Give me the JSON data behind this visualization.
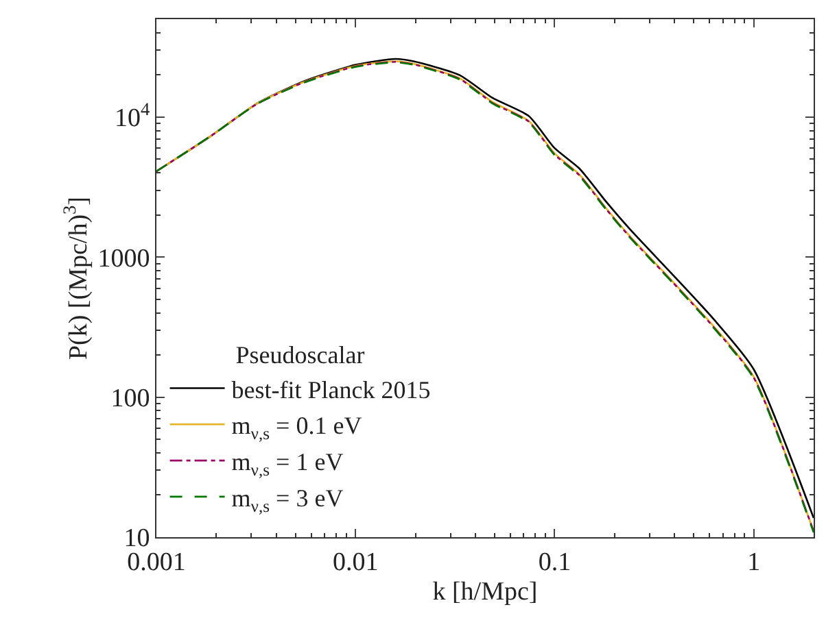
{
  "chart_data": {
    "type": "line",
    "xlabel": "k [h/Mpc]",
    "ylabel": "P(k) [(Mpc/h)$^{3}$]",
    "legend_title": "Pseudoscalar",
    "log": "xy",
    "legend": "bottom left",
    "x": [
      0.001,
      0.00187,
      0.0032,
      0.0055,
      0.01,
      0.0159,
      0.0196,
      0.0332,
      0.0488,
      0.074,
      0.1,
      0.133,
      0.183,
      0.24,
      0.388,
      0.63,
      1,
      2
    ],
    "series": [
      {
        "name": "best-fit Planck 2015",
        "color": "#000000",
        "line_style": "solid",
        "values": [
          4100,
          7300,
          12500,
          18000,
          23600,
          26000,
          25000,
          20000,
          13700,
          10200,
          6000,
          4300,
          2450,
          1570,
          760,
          360,
          158,
          13.7
        ]
      },
      {
        "name": "m$_{ν,s}$ = 0.1 eV",
        "color": "#e6b422",
        "line_style": "solid",
        "values": [
          4100,
          7300,
          12500,
          17800,
          23200,
          25000,
          24000,
          19000,
          12800,
          9400,
          5500,
          3900,
          2200,
          1400,
          680,
          320,
          140,
          11
        ]
      },
      {
        "name": "m$_{ν,s}$ = 1 eV",
        "color": "#990066",
        "line_style": "dashdot",
        "values": [
          4100,
          7300,
          12400,
          17700,
          23000,
          24800,
          23800,
          18800,
          12600,
          9300,
          5400,
          3850,
          2170,
          1380,
          670,
          315,
          138,
          11
        ]
      },
      {
        "name": "m$_{ν,s}$ = 3 eV",
        "color": "#007700",
        "line_style": "dashed",
        "values": [
          4100,
          7300,
          12400,
          17600,
          22800,
          24600,
          23600,
          18600,
          12500,
          9200,
          5350,
          3800,
          2150,
          1370,
          665,
          312,
          136,
          10.8
        ]
      }
    ],
    "xlim": [
      0.001,
      2
    ],
    "ylim": [
      10,
      50000
    ],
    "xticks": [
      0.001,
      0.01,
      0.1,
      1
    ],
    "yticks": [
      10,
      100,
      1000,
      {
        "value": 10000,
        "label": "10$^{4}$"
      }
    ]
  }
}
